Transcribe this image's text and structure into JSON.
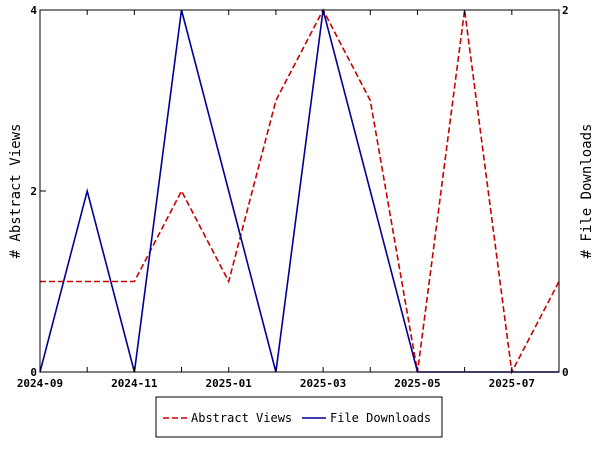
{
  "chart_data": {
    "type": "line",
    "title": "",
    "x": [
      "2024-09",
      "2024-10",
      "2024-11",
      "2024-12",
      "2025-01",
      "2025-02",
      "2025-03",
      "2025-04",
      "2025-05",
      "2025-06",
      "2025-07",
      "2025-08"
    ],
    "x_ticks": [
      "2024-09",
      "2024-11",
      "2025-01",
      "2025-03",
      "2025-05",
      "2025-07"
    ],
    "series": [
      {
        "name": "Abstract Views",
        "axis": "left",
        "color": "#cc0000",
        "dash": "dashed",
        "values": [
          1,
          1,
          1,
          2,
          1,
          3,
          4,
          3,
          0,
          4,
          0,
          1
        ]
      },
      {
        "name": "File Downloads",
        "axis": "right",
        "color": "#000099",
        "dash": "solid",
        "values": [
          0,
          1,
          0,
          2,
          1,
          0,
          2,
          1,
          0,
          0,
          0,
          0
        ]
      }
    ],
    "ylabel_left": "# Abstract Views",
    "ylabel_right": "# File Downloads",
    "ylim_left": [
      0,
      4
    ],
    "yticks_left": [
      0,
      2,
      4
    ],
    "ylim_right": [
      0,
      2
    ],
    "yticks_right": [
      0,
      2
    ],
    "grid": false,
    "legend_position": "bottom-center"
  }
}
